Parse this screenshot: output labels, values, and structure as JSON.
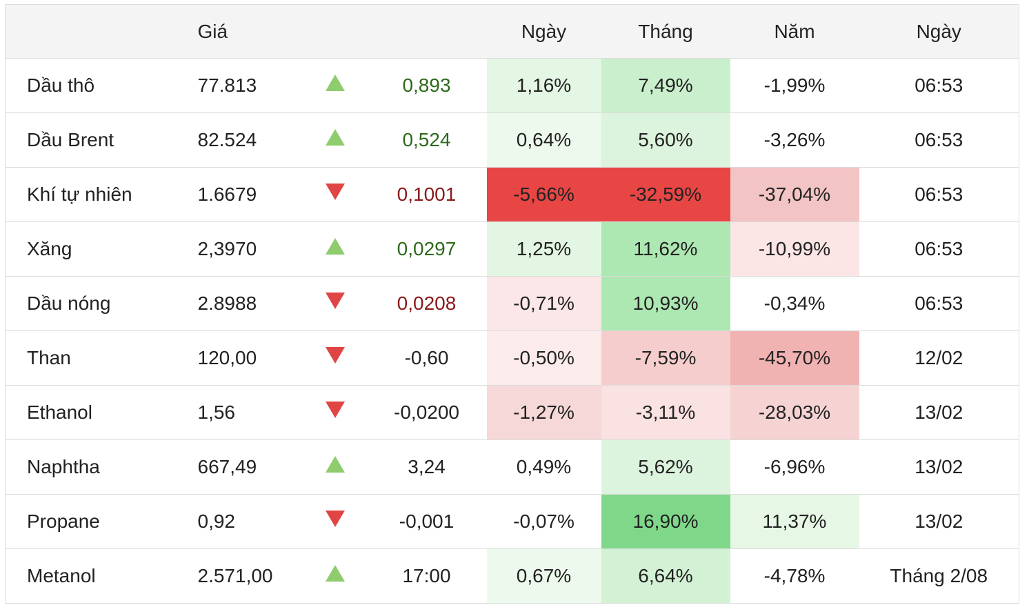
{
  "header": {
    "name": "",
    "price": "Giá",
    "arrow": "",
    "change": "",
    "day": "Ngày",
    "month": "Tháng",
    "year": "Năm",
    "date": "Ngày"
  },
  "colors": {
    "up_text": "#2d6a1a",
    "down_text": "#8a1a1a",
    "up_arrow": "#8fcc6e",
    "down_arrow": "#e04545"
  },
  "rows": [
    {
      "name": "Dầu thô",
      "price": "77.813",
      "direction": "up",
      "change": "0,893",
      "change_color": "up",
      "day": "1,16%",
      "month": "7,49%",
      "year": "-1,99%",
      "date": "06:53",
      "day_bg": "#e4f6e4",
      "month_bg": "#c9efcc",
      "year_bg": ""
    },
    {
      "name": "Dầu Brent",
      "price": "82.524",
      "direction": "up",
      "change": "0,524",
      "change_color": "up",
      "day": "0,64%",
      "month": "5,60%",
      "year": "-3,26%",
      "date": "06:53",
      "day_bg": "#eef9ee",
      "month_bg": "#dcf3dd",
      "year_bg": ""
    },
    {
      "name": "Khí tự nhiên",
      "price": "1.6679",
      "direction": "down",
      "change": "0,1001",
      "change_color": "down",
      "day": "-5,66%",
      "month": "-32,59%",
      "year": "-37,04%",
      "date": "06:53",
      "day_bg": "#e74645",
      "month_bg": "#e74645",
      "year_bg": "#f3c4c4"
    },
    {
      "name": "Xăng",
      "price": "2,3970",
      "direction": "up",
      "change": "0,0297",
      "change_color": "up",
      "day": "1,25%",
      "month": "11,62%",
      "year": "-10,99%",
      "date": "06:53",
      "day_bg": "#e3f6e3",
      "month_bg": "#ade7b2",
      "year_bg": "#fbe5e5"
    },
    {
      "name": "Dầu nóng",
      "price": "2.8988",
      "direction": "down",
      "change": "0,0208",
      "change_color": "down",
      "day": "-0,71%",
      "month": "10,93%",
      "year": "-0,34%",
      "date": "06:53",
      "day_bg": "#fbe7e7",
      "month_bg": "#ade7b2",
      "year_bg": ""
    },
    {
      "name": "Than",
      "price": "120,00",
      "direction": "down",
      "change": "-0,60",
      "change_color": "",
      "day": "-0,50%",
      "month": "-7,59%",
      "year": "-45,70%",
      "date": "12/02",
      "day_bg": "#fcebeb",
      "month_bg": "#f6cdcd",
      "year_bg": "#f1b2b2"
    },
    {
      "name": "Ethanol",
      "price": "1,56",
      "direction": "down",
      "change": "-0,0200",
      "change_color": "",
      "day": "-1,27%",
      "month": "-3,11%",
      "year": "-28,03%",
      "date": "13/02",
      "day_bg": "#f7d8d8",
      "month_bg": "#fae2e2",
      "year_bg": "#f6d3d3"
    },
    {
      "name": "Naphtha",
      "price": "667,49",
      "direction": "up",
      "change": "3,24",
      "change_color": "",
      "day": "0,49%",
      "month": "5,62%",
      "year": "-6,96%",
      "date": "13/02",
      "day_bg": "",
      "month_bg": "#dcf3dd",
      "year_bg": ""
    },
    {
      "name": "Propane",
      "price": "0,92",
      "direction": "down",
      "change": "-0,001",
      "change_color": "",
      "day": "-0,07%",
      "month": "16,90%",
      "year": "11,37%",
      "date": "13/02",
      "day_bg": "",
      "month_bg": "#7fd88a",
      "year_bg": "#e6f7e6"
    },
    {
      "name": "Metanol",
      "price": "2.571,00",
      "direction": "up",
      "change": "17:00",
      "change_color": "",
      "day": "0,67%",
      "month": "6,64%",
      "year": "-4,78%",
      "date": "Tháng 2/08",
      "day_bg": "#eef9ee",
      "month_bg": "#d3f1d5",
      "year_bg": ""
    }
  ]
}
